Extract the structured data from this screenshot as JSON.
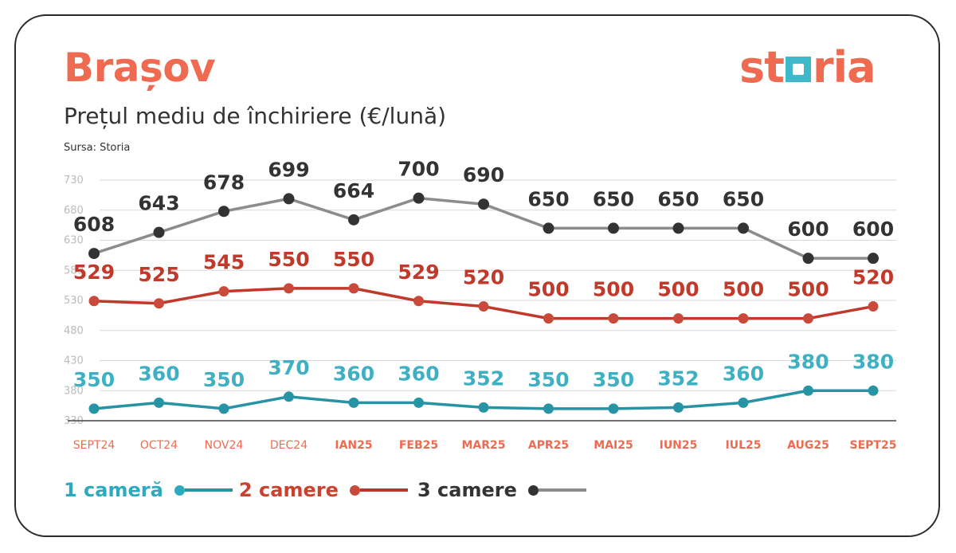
{
  "header": {
    "title": "Brașov",
    "subtitle": "Prețul mediu de închiriere (€/lună)",
    "source": "Sursa: Storia",
    "logo_left": "st",
    "logo_right": "ria"
  },
  "colors": {
    "accent": "#ee6b52",
    "series_1": "#2794a6",
    "series_1_label": "#3fb0c2",
    "series_2": "#c0392b",
    "series_2_dot": "#c94a3a",
    "series_3_dot": "#333333",
    "series_3_line": "#8c8c8c",
    "tick": "#bbbbbb",
    "grid": "#d9d9d9"
  },
  "chart_data": {
    "type": "line",
    "categories": [
      "SEPT24",
      "OCT24",
      "NOV24",
      "DEC24",
      "IAN25",
      "FEB25",
      "MAR25",
      "APR25",
      "MAI25",
      "IUN25",
      "IUL25",
      "AUG25",
      "SEPT25"
    ],
    "bold_categories": [
      "IAN25",
      "FEB25",
      "MAR25",
      "APR25",
      "MAI25",
      "IUN25",
      "IUL25",
      "AUG25",
      "SEPT25"
    ],
    "yticks": [
      330,
      380,
      430,
      480,
      530,
      580,
      630,
      680,
      730
    ],
    "ylim": [
      330,
      730
    ],
    "grid": true,
    "legend_position": "bottom-left",
    "series": [
      {
        "name": "1 cameră",
        "values": [
          350,
          360,
          350,
          370,
          360,
          360,
          352,
          350,
          350,
          352,
          360,
          380,
          380
        ]
      },
      {
        "name": "2 camere",
        "values": [
          529,
          525,
          545,
          550,
          550,
          529,
          520,
          500,
          500,
          500,
          500,
          500,
          520
        ]
      },
      {
        "name": "3 camere",
        "values": [
          608,
          643,
          678,
          699,
          664,
          700,
          690,
          650,
          650,
          650,
          650,
          600,
          600
        ]
      }
    ]
  },
  "legend": [
    {
      "label": "1 cameră"
    },
    {
      "label": "2 camere"
    },
    {
      "label": "3 camere"
    }
  ]
}
